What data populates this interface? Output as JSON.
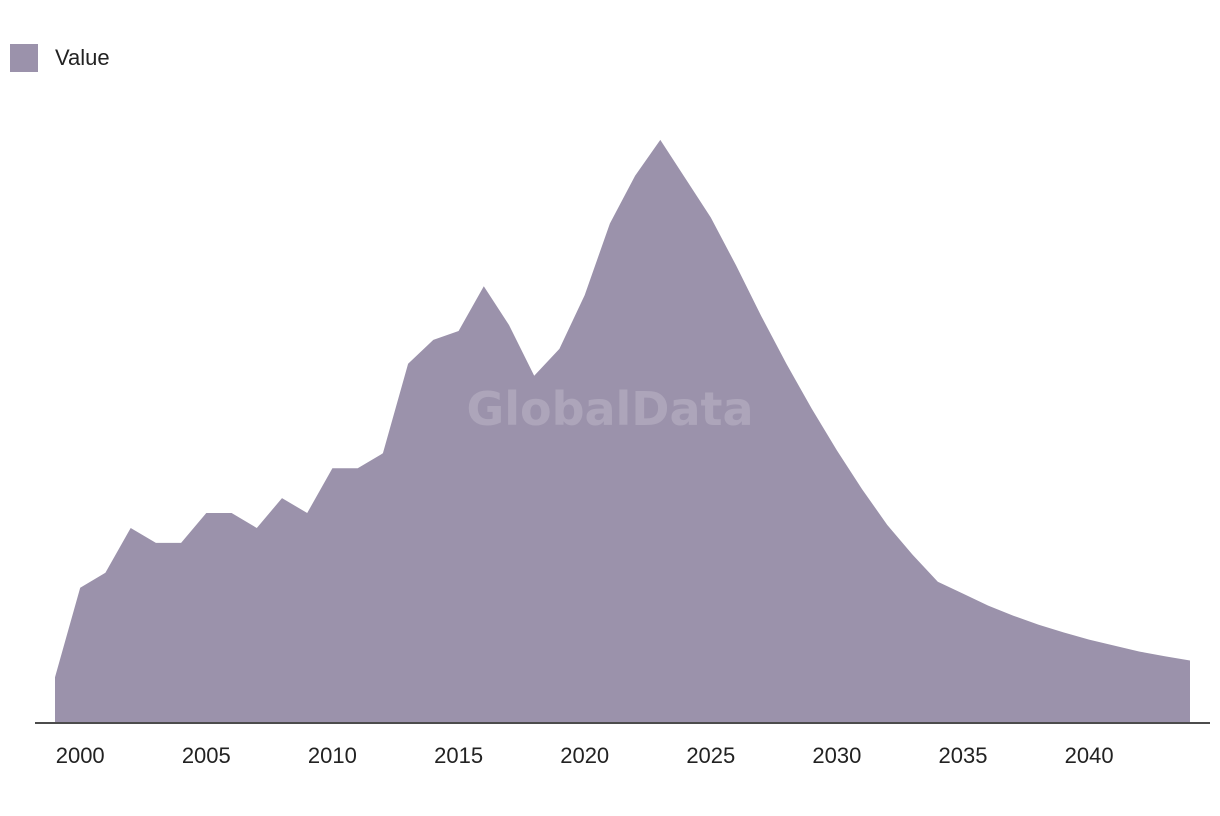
{
  "chart_data": {
    "type": "area",
    "legend": [
      {
        "name": "Value",
        "color": "#9b92ab"
      }
    ],
    "legend_placement": "top-left",
    "watermark": "GlobalData",
    "x_ticks": [
      2000,
      2005,
      2010,
      2015,
      2020,
      2025,
      2030,
      2035,
      2040
    ],
    "x": [
      1999,
      2000,
      2001,
      2002,
      2003,
      2004,
      2005,
      2006,
      2007,
      2008,
      2009,
      2010,
      2011,
      2012,
      2013,
      2014,
      2015,
      2016,
      2017,
      2018,
      2019,
      2020,
      2021,
      2022,
      2023,
      2024,
      2025,
      2026,
      2027,
      2028,
      2029,
      2030,
      2031,
      2032,
      2033,
      2034,
      2035,
      2036,
      2037,
      2038,
      2039,
      2040,
      2041,
      2042,
      2043,
      2044
    ],
    "series": [
      {
        "name": "Value",
        "color": "#9b92ab",
        "values": [
          7.5,
          22.5,
          25.0,
          32.5,
          30.0,
          30.0,
          35.0,
          35.0,
          32.5,
          37.5,
          35.0,
          42.5,
          42.5,
          45.0,
          60.0,
          64.0,
          65.5,
          73.0,
          66.5,
          58.0,
          62.5,
          71.5,
          83.5,
          91.5,
          97.5,
          91.0,
          84.5,
          76.5,
          68.0,
          60.0,
          52.5,
          45.5,
          39.0,
          33.0,
          28.0,
          23.5,
          21.5,
          19.5,
          17.8,
          16.3,
          15.0,
          13.8,
          12.8,
          11.8,
          11.0,
          10.3
        ]
      }
    ],
    "xlim": [
      1999,
      2044
    ],
    "ylim": [
      0,
      100
    ],
    "grid": false,
    "xlabel": "",
    "ylabel": ""
  }
}
